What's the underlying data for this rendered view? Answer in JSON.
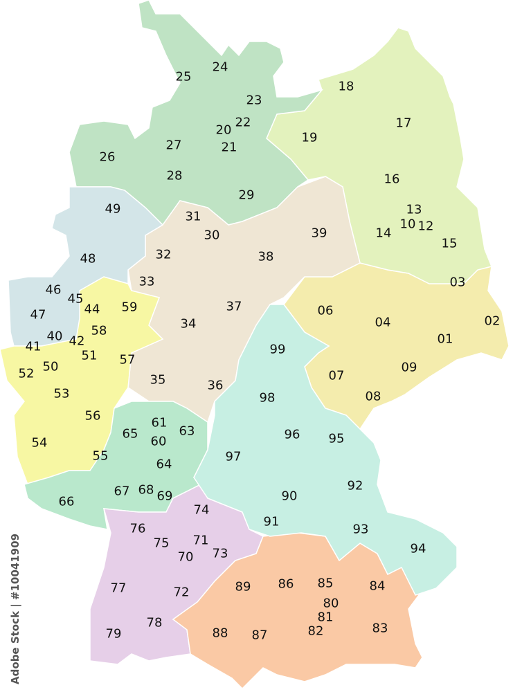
{
  "map": {
    "groups": [
      {
        "digit": "0",
        "color": "#f4ecad",
        "codes": [
          "01",
          "02",
          "03",
          "04",
          "06",
          "07",
          "08",
          "09"
        ]
      },
      {
        "digit": "1",
        "color": "#e3f2bd",
        "codes": [
          "10",
          "12",
          "13",
          "14",
          "15",
          "16",
          "17",
          "18",
          "19"
        ]
      },
      {
        "digit": "2",
        "color": "#bfe3c4",
        "codes": [
          "20",
          "21",
          "22",
          "23",
          "24",
          "25",
          "26",
          "27",
          "28",
          "29"
        ]
      },
      {
        "digit": "3",
        "color": "#efe6d4",
        "codes": [
          "30",
          "31",
          "32",
          "33",
          "34",
          "35",
          "36",
          "37",
          "38",
          "39"
        ]
      },
      {
        "digit": "4",
        "color": "#d3e5e8",
        "codes": [
          "40",
          "41",
          "42",
          "44",
          "45",
          "46",
          "47",
          "48",
          "49"
        ]
      },
      {
        "digit": "5",
        "color": "#f7f7a3",
        "codes": [
          "50",
          "51",
          "52",
          "53",
          "54",
          "55",
          "56",
          "57",
          "58",
          "59"
        ]
      },
      {
        "digit": "6",
        "color": "#b9e8cc",
        "codes": [
          "60",
          "61",
          "63",
          "64",
          "65",
          "66",
          "67",
          "68",
          "69"
        ]
      },
      {
        "digit": "7",
        "color": "#e6cfe8",
        "codes": [
          "70",
          "71",
          "72",
          "73",
          "74",
          "75",
          "76",
          "77",
          "78",
          "79"
        ]
      },
      {
        "digit": "8",
        "color": "#fac9a5",
        "codes": [
          "80",
          "81",
          "82",
          "83",
          "84",
          "85",
          "86",
          "87",
          "88",
          "89"
        ]
      },
      {
        "digit": "9",
        "color": "#c7efe3",
        "codes": [
          "90",
          "91",
          "92",
          "93",
          "94",
          "95",
          "96",
          "97",
          "98",
          "99"
        ]
      }
    ]
  },
  "credit": "Adobe Stock | #10041909"
}
